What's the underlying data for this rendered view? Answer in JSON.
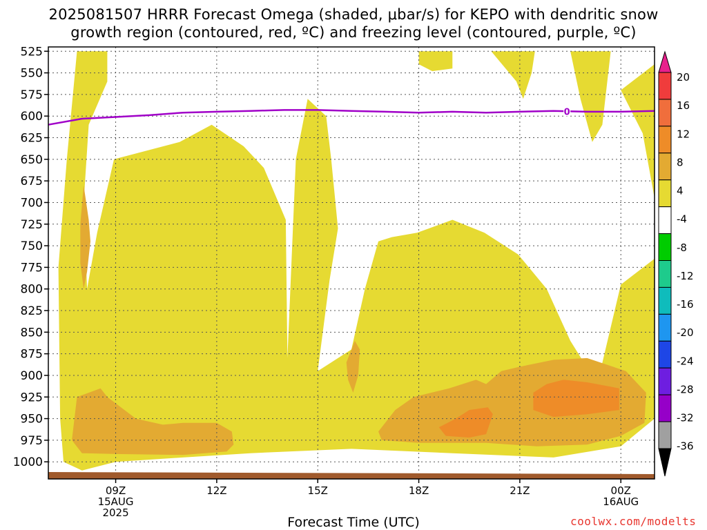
{
  "title": "2025081507 HRRR Forecast Omega (shaded, μbar/s) for KEPO with dendritic snow\ngrowth region (contoured, red, ºC) and freezing level (contoured, purple, ºC)",
  "credit": "coolwx.com/modelts",
  "chart_data": {
    "type": "heatmap",
    "title": "2025081507 HRRR Forecast Omega (shaded, μbar/s) for KEPO with dendritic snow growth region (contoured, red, ºC) and freezing level (contoured, purple, ºC)",
    "xlabel": "Forecast Time (UTC)",
    "ylabel": "",
    "y_axis": {
      "scale": "pressure (inverted)",
      "ticks": [
        525,
        550,
        575,
        600,
        625,
        650,
        675,
        700,
        725,
        750,
        775,
        800,
        825,
        850,
        875,
        900,
        925,
        950,
        975,
        1000
      ],
      "range": [
        520,
        1015
      ]
    },
    "x_axis": {
      "range_hours_utc": [
        7,
        25
      ],
      "ticks": [
        {
          "hour": 9,
          "lines": [
            "09Z",
            "15AUG",
            "2025"
          ]
        },
        {
          "hour": 12,
          "lines": [
            "12Z"
          ]
        },
        {
          "hour": 15,
          "lines": [
            "15Z"
          ]
        },
        {
          "hour": 18,
          "lines": [
            "18Z"
          ]
        },
        {
          "hour": 21,
          "lines": [
            "21Z"
          ]
        },
        {
          "hour": 24,
          "lines": [
            "00Z",
            "16AUG"
          ]
        }
      ]
    },
    "grid": true,
    "colorbar": {
      "labels": [
        "20",
        "16",
        "12",
        "8",
        "4",
        "-4",
        "-8",
        "-12",
        "-16",
        "-20",
        "-24",
        "-28",
        "-32",
        "-36"
      ],
      "colors": [
        "#e8208c",
        "#f03c3c",
        "#f06e3c",
        "#ee8c28",
        "#e3aa32",
        "#e6da32",
        "#ffffff",
        "#00cc00",
        "#1ecb8c",
        "#0fbcbc",
        "#1e96f0",
        "#1e46e6",
        "#6e1ee0",
        "#9600c8",
        "#a0a0a0",
        "#000000"
      ]
    },
    "omega_regions": [
      {
        "level": "4-8",
        "color": "#e6da32",
        "points": [
          [
            7.45,
            1000
          ],
          [
            7.35,
            950
          ],
          [
            7.3,
            775
          ],
          [
            7.55,
            650
          ],
          [
            7.85,
            525
          ],
          [
            8.75,
            525
          ],
          [
            8.75,
            560
          ],
          [
            8.2,
            610
          ],
          [
            8.05,
            700
          ],
          [
            8.15,
            800
          ],
          [
            8.45,
            735
          ],
          [
            8.95,
            650
          ],
          [
            10.9,
            630
          ],
          [
            11.85,
            610
          ],
          [
            12.8,
            635
          ],
          [
            13.4,
            660
          ],
          [
            14.05,
            720
          ],
          [
            14.1,
            880
          ],
          [
            14.35,
            650
          ],
          [
            14.7,
            580
          ],
          [
            15.25,
            600
          ],
          [
            15.4,
            650
          ],
          [
            15.6,
            730
          ],
          [
            15.35,
            790
          ],
          [
            15.0,
            895
          ],
          [
            16.0,
            870
          ],
          [
            16.4,
            800
          ],
          [
            16.8,
            745
          ],
          [
            17.2,
            740
          ],
          [
            17.95,
            735
          ],
          [
            19.0,
            720
          ],
          [
            19.95,
            735
          ],
          [
            20.95,
            760
          ],
          [
            21.8,
            800
          ],
          [
            22.5,
            860
          ],
          [
            23.3,
            910
          ],
          [
            24.0,
            795
          ],
          [
            25.0,
            765
          ],
          [
            25.0,
            950
          ],
          [
            24.0,
            982
          ],
          [
            22.0,
            995
          ],
          [
            19.0,
            990
          ],
          [
            16.0,
            985
          ],
          [
            13.0,
            990
          ],
          [
            11.0,
            995
          ],
          [
            9.0,
            1000
          ],
          [
            8.0,
            1010
          ]
        ]
      },
      {
        "level": "4-8",
        "color": "#e6da32",
        "points": [
          [
            18.0,
            525
          ],
          [
            19.0,
            525
          ],
          [
            19.0,
            545
          ],
          [
            18.4,
            548
          ],
          [
            18.0,
            540
          ]
        ]
      },
      {
        "level": "4-8",
        "color": "#e6da32",
        "points": [
          [
            20.15,
            525
          ],
          [
            21.45,
            525
          ],
          [
            21.35,
            550
          ],
          [
            21.1,
            580
          ],
          [
            20.9,
            560
          ]
        ]
      },
      {
        "level": "4-8",
        "color": "#e6da32",
        "points": [
          [
            22.5,
            525
          ],
          [
            23.7,
            525
          ],
          [
            23.45,
            610
          ],
          [
            23.15,
            630
          ],
          [
            22.8,
            580
          ]
        ]
      },
      {
        "level": "4-8",
        "color": "#e6da32",
        "points": [
          [
            24.0,
            570
          ],
          [
            25.0,
            540
          ],
          [
            25.0,
            695
          ],
          [
            24.65,
            620
          ]
        ]
      },
      {
        "level": "8-12",
        "color": "#e3aa32",
        "points": [
          [
            7.7,
            975
          ],
          [
            7.85,
            925
          ],
          [
            8.55,
            915
          ],
          [
            8.75,
            925
          ],
          [
            9.6,
            950
          ],
          [
            10.4,
            957
          ],
          [
            11.0,
            955
          ],
          [
            11.65,
            955
          ],
          [
            12.0,
            955
          ],
          [
            12.45,
            965
          ],
          [
            12.5,
            980
          ],
          [
            12.3,
            988
          ],
          [
            11.0,
            992
          ],
          [
            9.0,
            991
          ],
          [
            8.0,
            990
          ]
        ]
      },
      {
        "level": "8-12",
        "color": "#e3aa32",
        "points": [
          [
            7.95,
            725
          ],
          [
            8.05,
            680
          ],
          [
            8.2,
            720
          ],
          [
            8.25,
            745
          ],
          [
            8.15,
            780
          ],
          [
            8.05,
            800
          ],
          [
            7.95,
            770
          ]
        ]
      },
      {
        "level": "8-12",
        "color": "#e3aa32",
        "points": [
          [
            15.85,
            885
          ],
          [
            16.1,
            860
          ],
          [
            16.25,
            870
          ],
          [
            16.2,
            900
          ],
          [
            16.05,
            920
          ],
          [
            15.9,
            905
          ]
        ]
      },
      {
        "level": "8-12",
        "color": "#e3aa32",
        "points": [
          [
            16.8,
            965
          ],
          [
            17.3,
            940
          ],
          [
            17.85,
            925
          ],
          [
            18.9,
            915
          ],
          [
            19.7,
            905
          ],
          [
            20.0,
            910
          ],
          [
            20.45,
            895
          ],
          [
            21.0,
            890
          ],
          [
            22.0,
            882
          ],
          [
            23.0,
            880
          ],
          [
            24.15,
            895
          ],
          [
            24.75,
            920
          ],
          [
            24.7,
            955
          ],
          [
            24.0,
            970
          ],
          [
            23.0,
            980
          ],
          [
            21.5,
            982
          ],
          [
            20.0,
            978
          ],
          [
            19.0,
            978
          ],
          [
            18.0,
            978
          ],
          [
            16.9,
            975
          ]
        ]
      },
      {
        "level": "12-16",
        "color": "#ee8c28",
        "points": [
          [
            18.6,
            960
          ],
          [
            19.1,
            950
          ],
          [
            19.5,
            940
          ],
          [
            20.05,
            937
          ],
          [
            20.2,
            945
          ],
          [
            20.0,
            968
          ],
          [
            19.5,
            972
          ],
          [
            18.8,
            970
          ]
        ]
      },
      {
        "level": "12-16",
        "color": "#ee8c28",
        "points": [
          [
            21.4,
            920
          ],
          [
            21.8,
            910
          ],
          [
            22.3,
            905
          ],
          [
            23.0,
            908
          ],
          [
            23.95,
            915
          ],
          [
            23.95,
            940
          ],
          [
            23.0,
            945
          ],
          [
            22.0,
            948
          ],
          [
            21.4,
            940
          ]
        ]
      }
    ],
    "freezing_level_0C": {
      "label": "0",
      "color": "#a000c8",
      "x": [
        7,
        8,
        9,
        10,
        11,
        12,
        13,
        14,
        15,
        16,
        17,
        18,
        19,
        20,
        21,
        22,
        23,
        24,
        25
      ],
      "y": [
        610,
        603,
        601,
        599,
        596,
        595,
        594,
        593,
        593,
        594,
        595,
        596,
        595,
        596,
        595,
        594,
        595,
        595,
        594
      ]
    },
    "terrain_color": "#a05a2c"
  }
}
